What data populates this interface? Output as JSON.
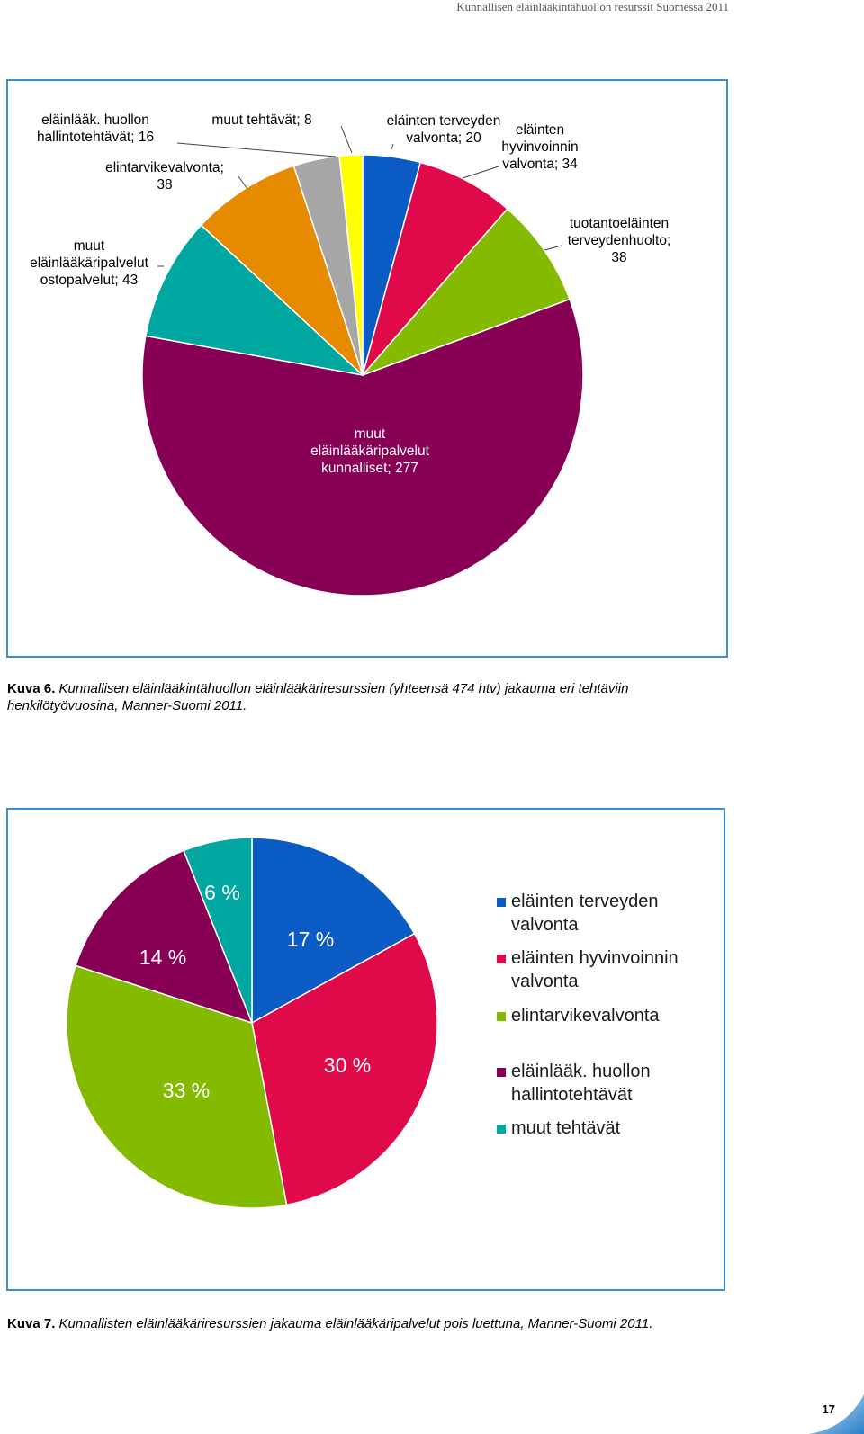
{
  "header": {
    "running_title": "Kunnallisen eläinlääkintähuollon resurssit Suomessa 2011"
  },
  "figure1": {
    "caption_label": "Kuva 6.",
    "caption_text": " Kunnallisen eläinlääkintähuollon eläinlääkäriresurssien (yhteensä 474 htv) jakauma eri tehtäviin henkilötyövuosina, Manner-Suomi 2011."
  },
  "figure2": {
    "caption_label": "Kuva 7.",
    "caption_text": " Kunnallisten eläinlääkäriresurssien jakauma eläinlääkäripalvelut pois luettuna, Manner-Suomi 2011."
  },
  "page": {
    "number": "17"
  },
  "chart_data": [
    {
      "type": "pie",
      "title": "",
      "start_angle_deg": 0,
      "direction": "clockwise",
      "slices": [
        {
          "label": "eläinten terveyden valvonta; 20",
          "value": 20,
          "color": "#0a5cc4"
        },
        {
          "label": "eläinten hyvinvoinnin valvonta; 34",
          "value": 34,
          "color": "#e0094a"
        },
        {
          "label": "tuotantoeläinten terveydenhuolto; 38",
          "value": 38,
          "color": "#84ba00"
        },
        {
          "label": "muut eläinlääkäripalvelut kunnalliset; 277",
          "value": 277,
          "color": "#880055"
        },
        {
          "label": "muut eläinlääkäripalvelut ostopalvelut; 43",
          "value": 43,
          "color": "#00a6a0"
        },
        {
          "label": "elintarvikevalvonta; 38",
          "value": 38,
          "color": "#e68a00"
        },
        {
          "label": "eläinlääk. huollon hallintotehtävät; 16",
          "value": 16,
          "color": "#a6a6a6"
        },
        {
          "label": "muut tehtävät; 8",
          "value": 8,
          "color": "#ffff00"
        }
      ]
    },
    {
      "type": "pie",
      "title": "",
      "start_angle_deg": 0,
      "direction": "clockwise",
      "slices": [
        {
          "label": "eläinten terveyden valvonta",
          "pct_label": "17 %",
          "value": 17,
          "color": "#0a5cc4"
        },
        {
          "label": "eläinten hyvinvoinnin valvonta",
          "pct_label": "30 %",
          "value": 30,
          "color": "#e0094a"
        },
        {
          "label": "elintarvikevalvonta",
          "pct_label": "33 %",
          "value": 33,
          "color": "#84ba00"
        },
        {
          "label": "eläinlääk. huollon hallintotehtävät",
          "pct_label": "14 %",
          "value": 14,
          "color": "#880055"
        },
        {
          "label": "muut tehtävät",
          "pct_label": "6 %",
          "value": 6,
          "color": "#00a6a0"
        }
      ],
      "legend": "right"
    }
  ]
}
